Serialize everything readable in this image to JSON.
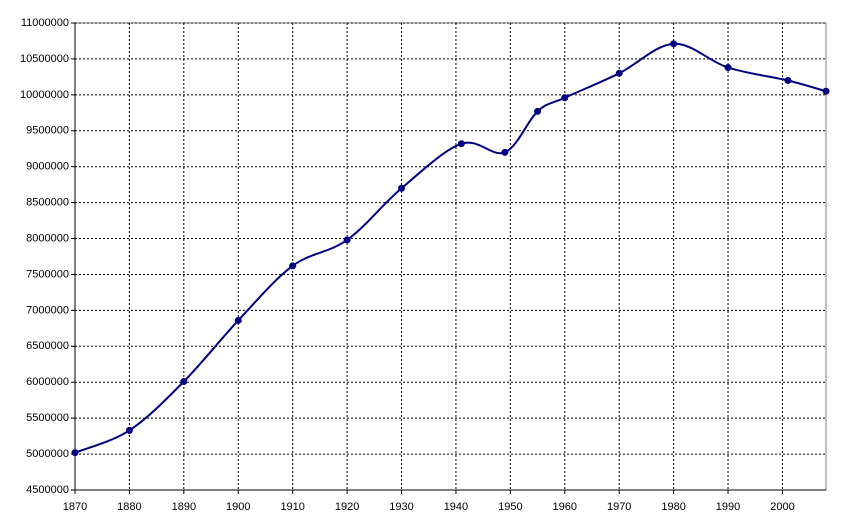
{
  "chart_data": {
    "type": "line",
    "x": [
      1870,
      1880,
      1890,
      1900,
      1910,
      1920,
      1930,
      1941,
      1949,
      1955,
      1960,
      1970,
      1980,
      1990,
      2001,
      2008
    ],
    "values": [
      5020000,
      5330000,
      6010000,
      6860000,
      7620000,
      7980000,
      8700000,
      9320000,
      9200000,
      9770000,
      9960000,
      10300000,
      10710000,
      10380000,
      10200000,
      10050000
    ],
    "color": "#000080",
    "smooth": true,
    "grid": true,
    "xlim": [
      1870,
      2008
    ],
    "xticks": [
      1870,
      1880,
      1890,
      1900,
      1910,
      1920,
      1930,
      1940,
      1950,
      1960,
      1970,
      1980,
      1990,
      2000
    ],
    "ylim": [
      4500000,
      11000000
    ],
    "yticks": [
      4500000,
      5000000,
      5500000,
      6000000,
      6500000,
      7000000,
      7500000,
      8000000,
      8500000,
      9000000,
      9500000,
      10000000,
      10500000,
      11000000
    ]
  }
}
